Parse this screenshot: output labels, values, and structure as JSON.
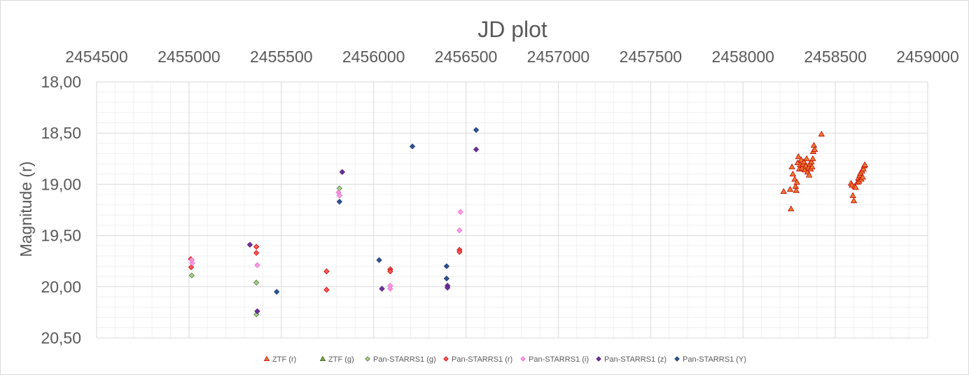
{
  "chart_data": {
    "type": "scatter",
    "title": "JD plot",
    "xlabel": "",
    "ylabel": "Magnitude (r)",
    "xlim": [
      2454500,
      2459000
    ],
    "ylim": [
      18.0,
      20.5
    ],
    "y_inverted": true,
    "x_axis_position": "top",
    "x_ticks": [
      "2454500",
      "2455000",
      "2455500",
      "2456000",
      "2456500",
      "2457000",
      "2457500",
      "2458000",
      "2458500",
      "2459000"
    ],
    "y_ticks": [
      "18,00",
      "18,50",
      "19,00",
      "19,50",
      "20,00",
      "20,50"
    ],
    "grid": true,
    "legend_position": "bottom",
    "series": [
      {
        "name": "ZTF (r)",
        "marker": "triangle",
        "color": "#ED7D31",
        "stroke": "#C00000",
        "points": [
          [
            2458220,
            19.07
          ],
          [
            2458255,
            19.05
          ],
          [
            2458260,
            19.24
          ],
          [
            2458265,
            18.83
          ],
          [
            2458270,
            18.9
          ],
          [
            2458280,
            18.95
          ],
          [
            2458285,
            19.02
          ],
          [
            2458288,
            19.06
          ],
          [
            2458292,
            18.98
          ],
          [
            2458296,
            18.79
          ],
          [
            2458300,
            18.73
          ],
          [
            2458305,
            18.85
          ],
          [
            2458310,
            18.81
          ],
          [
            2458315,
            18.76
          ],
          [
            2458320,
            18.84
          ],
          [
            2458325,
            18.8
          ],
          [
            2458330,
            18.78
          ],
          [
            2458335,
            18.86
          ],
          [
            2458340,
            18.82
          ],
          [
            2458345,
            18.75
          ],
          [
            2458350,
            18.88
          ],
          [
            2458355,
            18.84
          ],
          [
            2458358,
            18.91
          ],
          [
            2458362,
            18.8
          ],
          [
            2458366,
            18.85
          ],
          [
            2458370,
            18.78
          ],
          [
            2458374,
            18.83
          ],
          [
            2458378,
            18.75
          ],
          [
            2458380,
            18.68
          ],
          [
            2458384,
            18.62
          ],
          [
            2458388,
            18.66
          ],
          [
            2458425,
            18.51
          ],
          [
            2458585,
            18.99
          ],
          [
            2458590,
            19.01
          ],
          [
            2458595,
            19.11
          ],
          [
            2458600,
            19.16
          ],
          [
            2458605,
            19.02
          ],
          [
            2458610,
            19.03
          ],
          [
            2458620,
            18.98
          ],
          [
            2458625,
            18.94
          ],
          [
            2458628,
            18.97
          ],
          [
            2458632,
            18.91
          ],
          [
            2458636,
            18.89
          ],
          [
            2458640,
            18.95
          ],
          [
            2458644,
            18.87
          ],
          [
            2458648,
            18.93
          ],
          [
            2458652,
            18.85
          ],
          [
            2458656,
            18.82
          ],
          [
            2458660,
            18.81
          ]
        ]
      },
      {
        "name": "ZTF (g)",
        "marker": "triangle",
        "color": "#70AD47",
        "stroke": "#375623",
        "points": []
      },
      {
        "name": "Pan-STARRS1 (g)",
        "marker": "diamond",
        "color": "#A9D18E",
        "stroke": "#4E7A3A",
        "points": [
          [
            2455015,
            19.89
          ],
          [
            2455365,
            19.96
          ],
          [
            2455365,
            20.27
          ],
          [
            2455815,
            19.04
          ]
        ]
      },
      {
        "name": "Pan-STARRS1 (r)",
        "marker": "diamond",
        "color": "#FF5B5B",
        "stroke": "#C00000",
        "points": [
          [
            2455010,
            19.73
          ],
          [
            2455012,
            19.81
          ],
          [
            2455365,
            19.61
          ],
          [
            2455365,
            19.67
          ],
          [
            2455745,
            19.85
          ],
          [
            2455745,
            20.03
          ],
          [
            2456090,
            19.83
          ],
          [
            2456090,
            19.85
          ],
          [
            2456465,
            19.64
          ],
          [
            2456465,
            19.66
          ]
        ]
      },
      {
        "name": "Pan-STARRS1 (i)",
        "marker": "diamond",
        "color": "#FF99E6",
        "stroke": "#E371C9",
        "points": [
          [
            2455015,
            19.74
          ],
          [
            2455018,
            19.77
          ],
          [
            2455370,
            19.79
          ],
          [
            2455810,
            19.08
          ],
          [
            2455815,
            19.11
          ],
          [
            2456090,
            19.99
          ],
          [
            2456090,
            20.02
          ],
          [
            2456465,
            19.45
          ],
          [
            2456470,
            19.27
          ]
        ]
      },
      {
        "name": "Pan-STARRS1 (z)",
        "marker": "diamond",
        "color": "#7030A0",
        "stroke": "#4B1E6E",
        "points": [
          [
            2455330,
            19.59
          ],
          [
            2455370,
            20.24
          ],
          [
            2455830,
            18.88
          ],
          [
            2456045,
            20.02
          ],
          [
            2456400,
            19.99
          ],
          [
            2456400,
            20.01
          ],
          [
            2456555,
            18.66
          ]
        ]
      },
      {
        "name": "Pan-STARRS1 (Y)",
        "marker": "diamond",
        "color": "#2F5597",
        "stroke": "#1F3864",
        "points": [
          [
            2455475,
            20.05
          ],
          [
            2455815,
            19.17
          ],
          [
            2456030,
            19.74
          ],
          [
            2456210,
            18.63
          ],
          [
            2456395,
            19.8
          ],
          [
            2456395,
            19.92
          ],
          [
            2456555,
            18.47
          ]
        ]
      }
    ]
  }
}
